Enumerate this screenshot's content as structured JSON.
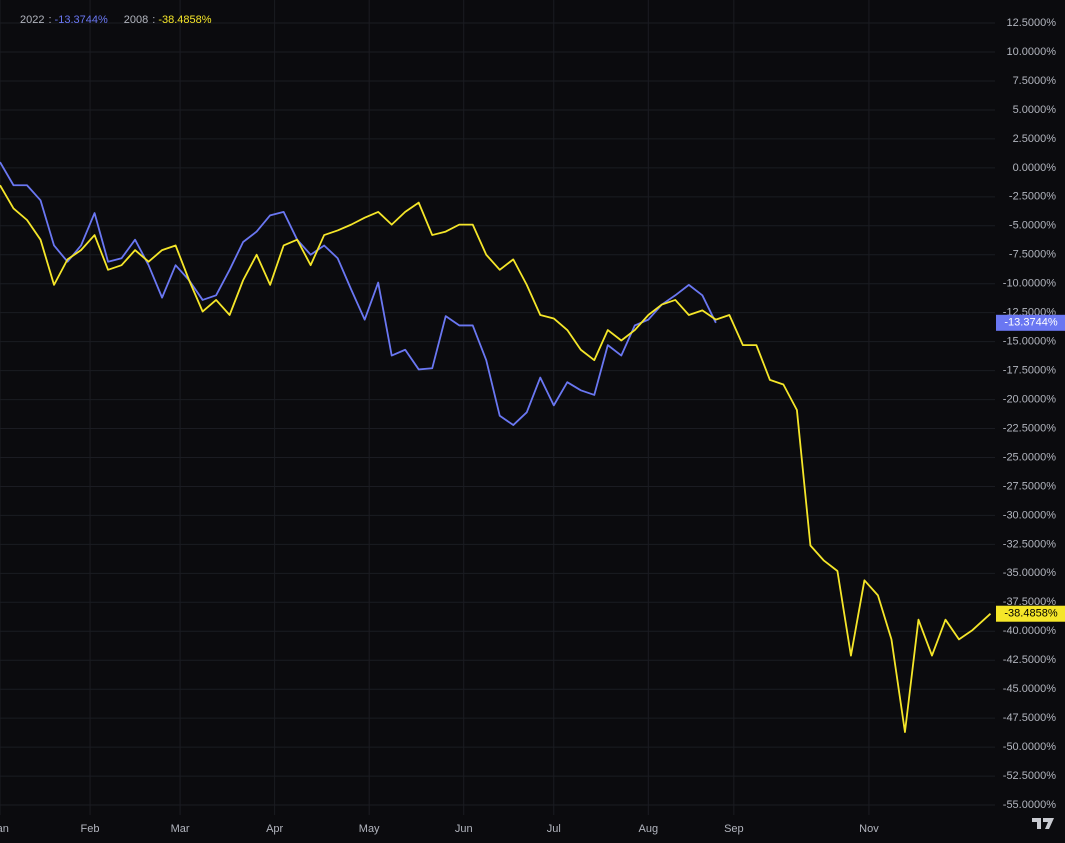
{
  "chart_data": {
    "type": "line",
    "legend_separator": ":",
    "x": [
      0,
      3,
      6,
      9,
      12,
      15,
      18,
      21,
      24,
      27,
      30,
      33,
      36,
      39,
      42,
      45,
      48,
      51,
      54,
      57,
      60,
      63,
      66,
      69,
      72,
      75,
      78,
      81,
      84,
      87,
      90,
      93,
      96,
      99,
      102,
      105,
      108,
      111,
      114,
      117,
      120,
      123,
      126,
      129,
      132,
      135,
      138,
      141,
      144,
      147,
      150,
      153,
      156,
      159,
      162,
      165,
      168,
      171,
      174,
      177,
      180,
      183,
      186,
      189,
      192,
      195,
      198,
      201,
      204,
      207,
      210,
      213,
      216,
      220
    ],
    "xlim": [
      0,
      221
    ],
    "xticks": [
      {
        "value": 0,
        "label": "Jan"
      },
      {
        "value": 20,
        "label": "Feb"
      },
      {
        "value": 40,
        "label": "Mar"
      },
      {
        "value": 61,
        "label": "Apr"
      },
      {
        "value": 82,
        "label": "May"
      },
      {
        "value": 103,
        "label": "Jun"
      },
      {
        "value": 123,
        "label": "Jul"
      },
      {
        "value": 144,
        "label": "Aug"
      },
      {
        "value": 163,
        "label": "Sep"
      },
      {
        "value": 193,
        "label": "Nov"
      }
    ],
    "ylim": [
      -55.86,
      14.49
    ],
    "yticks": [
      {
        "value": 12.5,
        "label": "12.5000%"
      },
      {
        "value": 10,
        "label": "10.0000%"
      },
      {
        "value": 7.5,
        "label": "7.5000%"
      },
      {
        "value": 5,
        "label": "5.0000%"
      },
      {
        "value": 2.5,
        "label": "2.5000%"
      },
      {
        "value": 0,
        "label": "0.0000%"
      },
      {
        "value": -2.5,
        "label": "-2.5000%"
      },
      {
        "value": -5,
        "label": "-5.0000%"
      },
      {
        "value": -7.5,
        "label": "-7.5000%"
      },
      {
        "value": -10,
        "label": "-10.0000%"
      },
      {
        "value": -12.5,
        "label": "-12.5000%"
      },
      {
        "value": -15,
        "label": "-15.0000%"
      },
      {
        "value": -17.5,
        "label": "-17.5000%"
      },
      {
        "value": -20,
        "label": "-20.0000%"
      },
      {
        "value": -22.5,
        "label": "-22.5000%"
      },
      {
        "value": -25,
        "label": "-25.0000%"
      },
      {
        "value": -27.5,
        "label": "-27.5000%"
      },
      {
        "value": -30,
        "label": "-30.0000%"
      },
      {
        "value": -32.5,
        "label": "-32.5000%"
      },
      {
        "value": -35,
        "label": "-35.0000%"
      },
      {
        "value": -37.5,
        "label": "-37.5000%"
      },
      {
        "value": -40,
        "label": "-40.0000%"
      },
      {
        "value": -42.5,
        "label": "-42.5000%"
      },
      {
        "value": -45,
        "label": "-45.0000%"
      },
      {
        "value": -47.5,
        "label": "-47.5000%"
      },
      {
        "value": -50,
        "label": "-50.0000%"
      },
      {
        "value": -52.5,
        "label": "-52.5000%"
      },
      {
        "value": -55,
        "label": "-55.0000%"
      }
    ],
    "grid": true,
    "series": [
      {
        "name": "2022",
        "color": "#6a77f2",
        "label_text_color": "#ffffff",
        "last_value_label": "-13.3744%",
        "values": [
          0.5,
          -1.5,
          -1.5,
          -2.8,
          -6.7,
          -8.1,
          -6.7,
          -3.9,
          -8.1,
          -7.8,
          -6.2,
          -8.4,
          -11.2,
          -8.4,
          -9.7,
          -11.4,
          -11,
          -8.8,
          -6.4,
          -5.5,
          -4.1,
          -3.8,
          -6.2,
          -7.5,
          -6.7,
          -7.8,
          -10.5,
          -13.1,
          -9.9,
          -16.2,
          -15.7,
          -17.4,
          -17.3,
          -12.8,
          -13.6,
          -13.6,
          -16.6,
          -21.4,
          -22.2,
          -21.1,
          -18.1,
          -20.5,
          -18.5,
          -19.2,
          -19.6,
          -15.3,
          -16.2,
          -13.6,
          -13.1,
          -11.8,
          -11,
          -10.1,
          -11,
          -13.3744,
          null,
          null,
          null,
          null,
          null,
          null,
          null,
          null,
          null,
          null,
          null,
          null,
          null,
          null,
          null,
          null,
          null,
          null,
          null,
          null
        ]
      },
      {
        "name": "2008",
        "color": "#f5e629",
        "label_text_color": "#000000",
        "last_value_label": "-38.4858%",
        "values": [
          -1.5,
          -3.5,
          -4.5,
          -6.2,
          -10.1,
          -7.9,
          -7.1,
          -5.8,
          -8.8,
          -8.4,
          -7.1,
          -8.1,
          -7.1,
          -6.7,
          -9.7,
          -12.4,
          -11.4,
          -12.7,
          -9.7,
          -7.5,
          -10.1,
          -6.7,
          -6.2,
          -8.4,
          -5.8,
          -5.4,
          -4.9,
          -4.3,
          -3.8,
          -4.9,
          -3.8,
          -3.0,
          -5.8,
          -5.5,
          -4.9,
          -4.9,
          -7.5,
          -8.8,
          -7.9,
          -10.1,
          -12.7,
          -13.0,
          -14.0,
          -15.7,
          -16.6,
          -14.0,
          -14.9,
          -14.0,
          -12.7,
          -11.8,
          -11.4,
          -12.7,
          -12.3,
          -13.1,
          -12.7,
          -15.3,
          -15.3,
          -18.3,
          -18.7,
          -20.9,
          -32.6,
          -33.9,
          -34.8,
          -42.1,
          -35.6,
          -36.9,
          -40.7,
          -48.7,
          -39.0,
          -42.1,
          -39.0,
          -40.7,
          -39.9,
          -38.4858
        ]
      }
    ]
  }
}
